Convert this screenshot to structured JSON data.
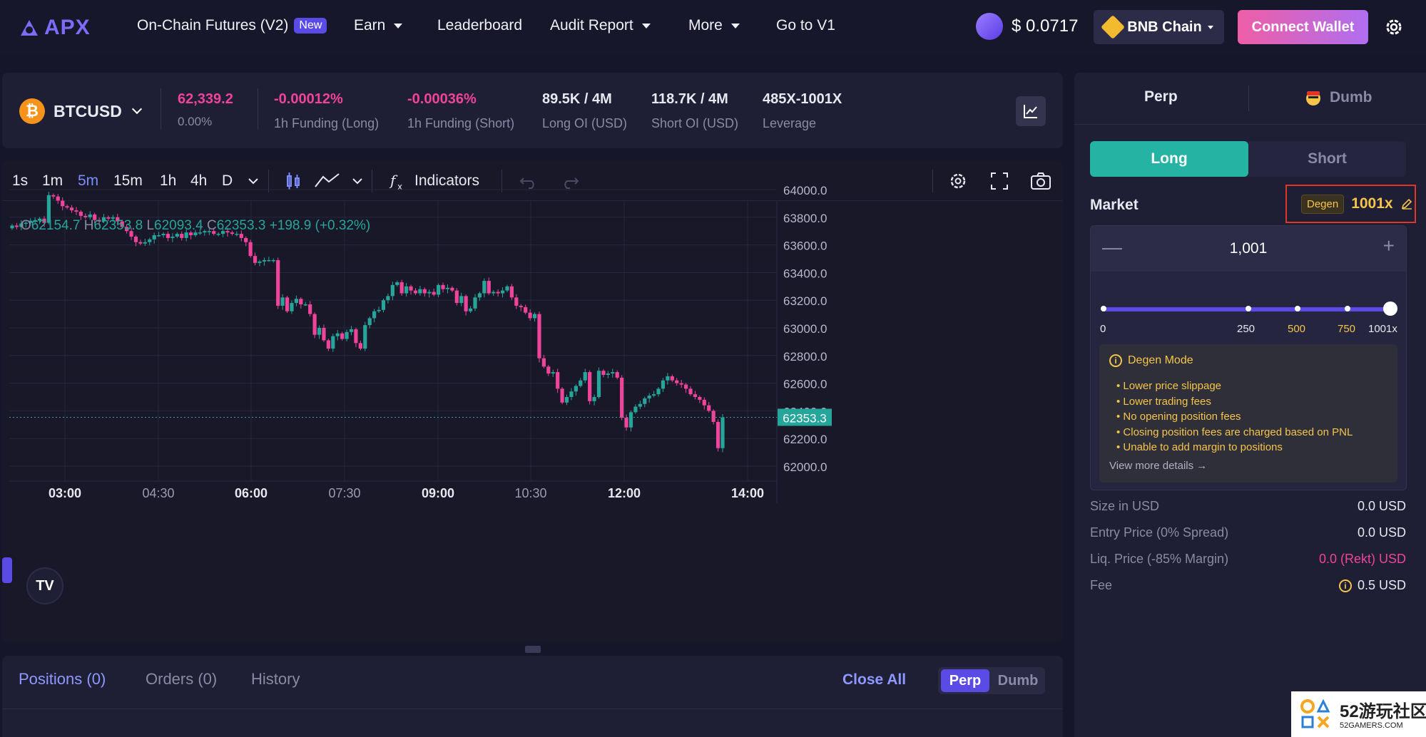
{
  "nav": {
    "logo": "APX",
    "items": [
      {
        "label": "On-Chain Futures (V2)",
        "badge": "New"
      },
      {
        "label": "Earn"
      },
      {
        "label": "Leaderboard"
      },
      {
        "label": "Audit Report"
      },
      {
        "label": "More"
      },
      {
        "label": "Go to V1"
      }
    ],
    "token_price": "$ 0.0717",
    "chain": "BNB Chain",
    "connect": "Connect Wallet"
  },
  "ticker": {
    "pair": "BTCUSD",
    "price": "62,339.2",
    "change": "0.00%",
    "stats": [
      {
        "value": "-0.00012%",
        "label": "1h Funding (Long)"
      },
      {
        "value": "-0.00036%",
        "label": "1h Funding (Short)"
      },
      {
        "value": "89.5K / 4M",
        "label": "Long OI (USD)"
      },
      {
        "value": "118.7K / 4M",
        "label": "Short OI (USD)"
      },
      {
        "value": "485X-1001X",
        "label": "Leverage"
      }
    ]
  },
  "chart_toolbar": {
    "timeframes": [
      "1s",
      "1m",
      "5m",
      "15m",
      "1h",
      "4h",
      "D"
    ],
    "active_timeframe": "5m",
    "indicators": "Indicators"
  },
  "ohlc": {
    "o_label": "O",
    "o": "62154.7",
    "h_label": "H",
    "h": "62353.8",
    "l_label": "L",
    "l": "62093.4",
    "c_label": "C",
    "c": "62353.3",
    "chg": "+198.9 (+0.32%)"
  },
  "chart_data": {
    "type": "candlestick",
    "ylim": [
      61950,
      64100
    ],
    "y_ticks": [
      "64000.0",
      "63800.0",
      "63600.0",
      "63400.0",
      "63200.0",
      "63000.0",
      "62800.0",
      "62600.0",
      "62400.0",
      "62200.0",
      "62000.0"
    ],
    "x_ticks": [
      {
        "label": "03:00",
        "bold": true
      },
      {
        "label": "04:30",
        "bold": false
      },
      {
        "label": "06:00",
        "bold": true
      },
      {
        "label": "07:30",
        "bold": false
      },
      {
        "label": "09:00",
        "bold": true
      },
      {
        "label": "10:30",
        "bold": false
      },
      {
        "label": "12:00",
        "bold": true
      },
      {
        "label": "14:00",
        "bold": true
      }
    ],
    "last_price": "62353.3",
    "close_series": [
      63740,
      63730,
      63755,
      63760,
      63775,
      63775,
      63790,
      63760,
      63960,
      63950,
      63920,
      63880,
      63870,
      63850,
      63840,
      63810,
      63800,
      63820,
      63780,
      63770,
      63800,
      63790,
      63800,
      63770,
      63730,
      63700,
      63660,
      63620,
      63610,
      63620,
      63640,
      63670,
      63670,
      63680,
      63650,
      63660,
      63680,
      63650,
      63690,
      63670,
      63690,
      63690,
      63700,
      63700,
      63680,
      63680,
      63700,
      63690,
      63680,
      63680,
      63650,
      63620,
      63520,
      63470,
      63480,
      63490,
      63490,
      63490,
      63160,
      63220,
      63120,
      63180,
      63210,
      63170,
      63170,
      63100,
      62950,
      63000,
      62910,
      62850,
      62940,
      62960,
      62920,
      62970,
      62990,
      62890,
      62850,
      63020,
      63070,
      63120,
      63130,
      63200,
      63230,
      63310,
      63330,
      63250,
      63300,
      63270,
      63250,
      63280,
      63250,
      63260,
      63240,
      63310,
      63280,
      63290,
      63270,
      63180,
      63230,
      63120,
      63140,
      63220,
      63250,
      63340,
      63250,
      63260,
      63250,
      63270,
      63300,
      63220,
      63160,
      63150,
      63110,
      63070,
      63100,
      62780,
      62720,
      62670,
      62680,
      62560,
      62460,
      62500,
      62540,
      62580,
      62620,
      62680,
      62470,
      62500,
      62690,
      62660,
      62670,
      62680,
      62640,
      62350,
      62280,
      62390,
      62430,
      62450,
      62490,
      62510,
      62520,
      62560,
      62620,
      62650,
      62620,
      62600,
      62590,
      62560,
      62520,
      62500,
      62480,
      62440,
      62400,
      62320,
      62130,
      62353
    ]
  },
  "bottom": {
    "tabs": [
      "Positions (0)",
      "Orders (0)",
      "History"
    ],
    "close_all": "Close All",
    "seg_on": "Perp",
    "seg_off": "Dumb"
  },
  "trade": {
    "tab_perp": "Perp",
    "tab_dumb": "Dumb",
    "long": "Long",
    "short": "Short",
    "market": "Market",
    "degen_tag": "Degen",
    "leverage": "1001x",
    "stepper_value": "1,001",
    "slider_labels": [
      "0",
      "250",
      "500",
      "750",
      "1001x"
    ],
    "slider_level": 1.0,
    "degen_title": "Degen Mode",
    "degen_points": [
      "• Lower price slippage",
      "• Lower trading fees",
      "• No opening position fees",
      "• Closing position fees are charged based on PNL",
      "• Unable to add margin to positions"
    ],
    "view_more": "View more details →",
    "rows": [
      {
        "k": "Size in USD",
        "v": "0.0 USD"
      },
      {
        "k": "Entry Price (0% Spread)",
        "v": "0.0 USD"
      },
      {
        "k": "Liq. Price (-85% Margin)",
        "v": "0.0 (Rekt) USD"
      },
      {
        "k": "Fee",
        "v": "0.5 USD"
      }
    ]
  },
  "watermark": {
    "title": "52游玩社区",
    "sub": "52GAMERS.COM"
  },
  "colors": {
    "up": "#26a69a",
    "down": "#f0449b",
    "accent": "#5a4ae6",
    "degen": "#f5c44a"
  }
}
